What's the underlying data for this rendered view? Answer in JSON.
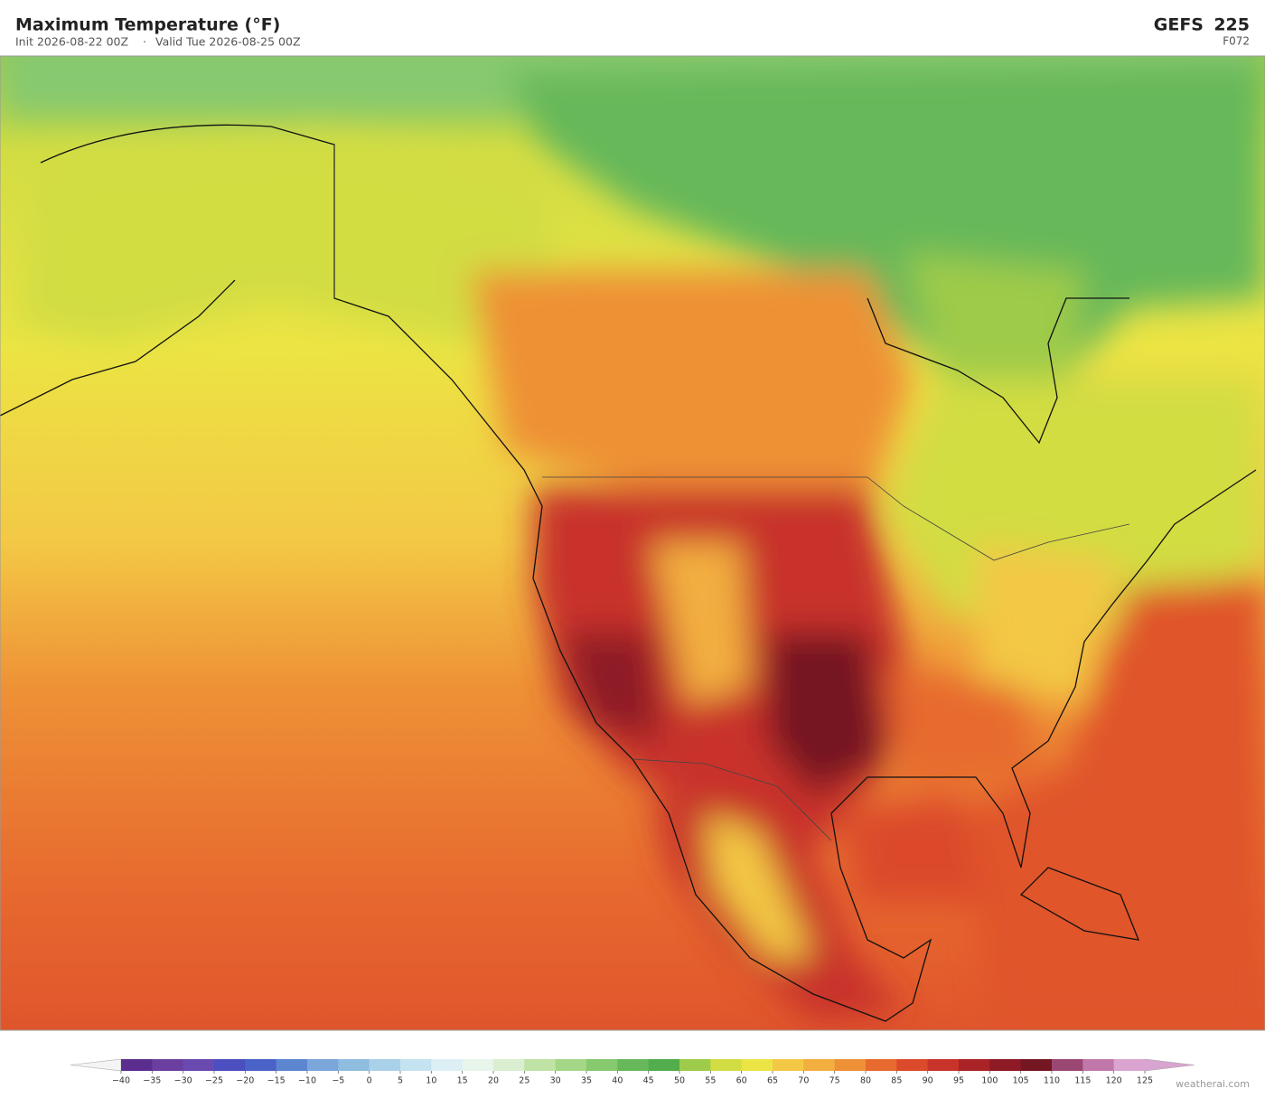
{
  "header": {
    "title": "Maximum Temperature  (°F)",
    "init": "Init 2026-08-22 00Z",
    "separator": "·",
    "valid": "Valid Tue 2026-08-25 00Z",
    "model": "GEFS",
    "member": "225",
    "forecast_hour": "F072"
  },
  "colorbar": {
    "ticks": [
      {
        "value": -40,
        "label": "−40"
      },
      {
        "value": -35,
        "label": "−35"
      },
      {
        "value": -30,
        "label": "−30"
      },
      {
        "value": -25,
        "label": "−25"
      },
      {
        "value": -20,
        "label": "−20"
      },
      {
        "value": -15,
        "label": "−15"
      },
      {
        "value": -10,
        "label": "−10"
      },
      {
        "value": -5,
        "label": "−5"
      },
      0,
      5,
      10,
      15,
      20,
      25,
      30,
      35,
      40,
      45,
      50,
      55,
      60,
      65,
      70,
      75,
      80,
      85,
      90,
      95,
      100,
      105,
      110,
      115,
      120,
      125
    ],
    "colors": [
      "#5a2d8f",
      "#6b3fa0",
      "#6a4ab0",
      "#4b4fc0",
      "#4a63c8",
      "#5d86d0",
      "#7aa6da",
      "#8fbde0",
      "#a9d2ea",
      "#c4e2ef",
      "#dceff4",
      "#e8f5ea",
      "#d9efcf",
      "#bfe3a5",
      "#a3d687",
      "#86c96f",
      "#66b85a",
      "#52ad4d",
      "#9ecb4a",
      "#d2dd43",
      "#ece444",
      "#f3c845",
      "#f2ae3f",
      "#ee9136",
      "#e76a2f",
      "#db4a2a",
      "#c8332a",
      "#aa2327",
      "#8d1a25",
      "#741722",
      "#9a4774",
      "#c078ab",
      "#d9a4cf"
    ]
  },
  "watermark": "weatherai.com"
}
